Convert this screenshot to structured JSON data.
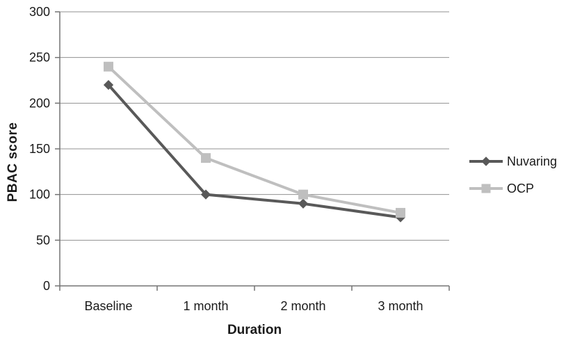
{
  "chart_data": {
    "type": "line",
    "title": "",
    "xlabel": "Duration",
    "ylabel": "PBAC score",
    "categories": [
      "Baseline",
      "1 month",
      "2 month",
      "3 month"
    ],
    "series": [
      {
        "name": "Nuvaring",
        "marker": "diamond",
        "color": "#595959",
        "values": [
          220,
          100,
          90,
          75
        ]
      },
      {
        "name": "OCP",
        "marker": "square",
        "color": "#bfbfbf",
        "values": [
          240,
          140,
          100,
          80
        ]
      }
    ],
    "ylim": [
      0,
      300
    ],
    "yticks": [
      0,
      50,
      100,
      150,
      200,
      250,
      300
    ],
    "grid": true,
    "legend_position": "right"
  },
  "colors": {
    "background": "#ffffff",
    "axis_line": "#737373",
    "gridline": "#919191",
    "text": "#1a1a1a"
  }
}
